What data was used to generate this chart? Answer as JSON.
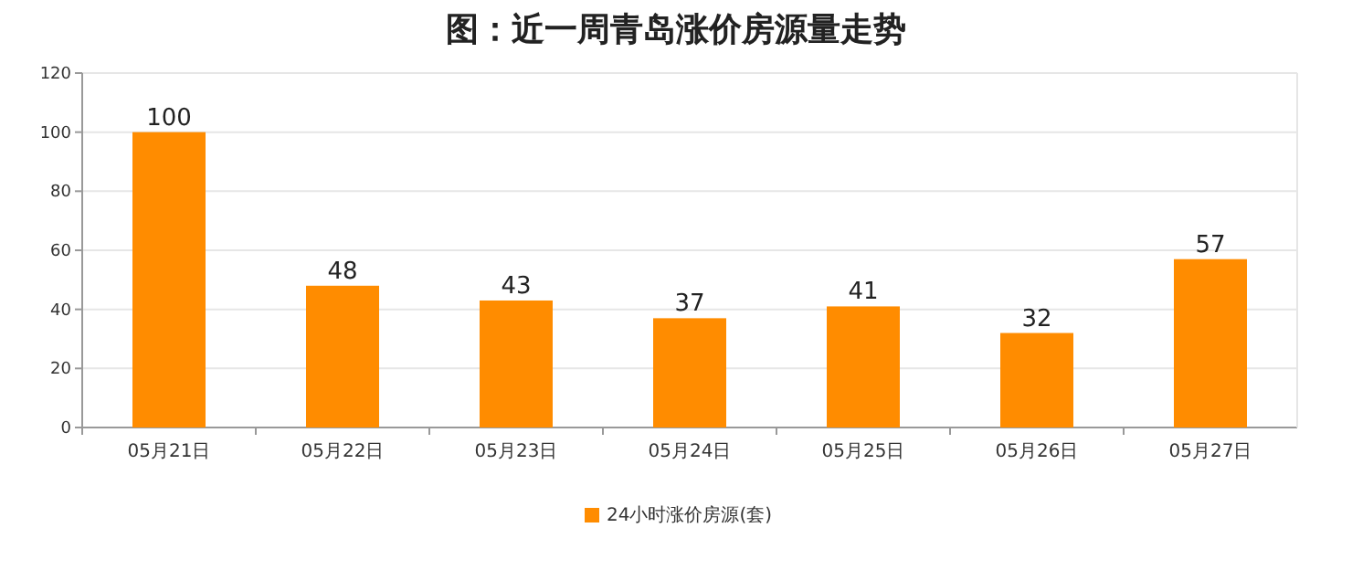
{
  "chart_data": {
    "type": "bar",
    "title": "图：近一周青岛涨价房源量走势",
    "categories": [
      "05月21日",
      "05月22日",
      "05月23日",
      "05月24日",
      "05月25日",
      "05月26日",
      "05月27日"
    ],
    "series": [
      {
        "name": "24小时涨价房源(套)",
        "color": "#ff8c00",
        "values": [
          100,
          48,
          43,
          37,
          41,
          32,
          57
        ]
      }
    ],
    "ylim": [
      0,
      120
    ],
    "yticks": [
      0,
      20,
      40,
      60,
      80,
      100,
      120
    ],
    "grid": "y",
    "legend": "bottom",
    "data_labels": true
  }
}
